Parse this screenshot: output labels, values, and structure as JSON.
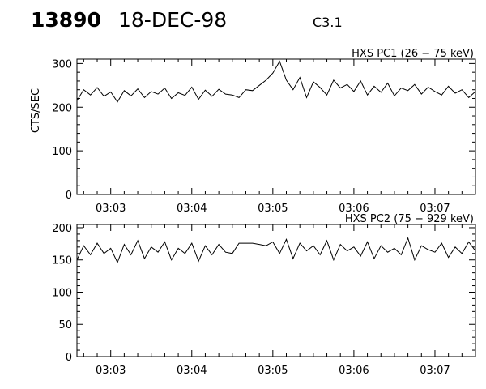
{
  "header": {
    "flare_number": "13890",
    "date": "18-DEC-98",
    "goes_class": "C3.1"
  },
  "chart_data": [
    {
      "type": "line",
      "title": "HXS PC1 (26 − 75 keV)",
      "ylabel": "CTS/SEC",
      "xlabel": "",
      "xlim": [
        "03:02:35",
        "03:07:30"
      ],
      "ylim": [
        0,
        310
      ],
      "yticks": [
        0,
        100,
        200,
        300
      ],
      "xticks": [
        "03:03",
        "03:04",
        "03:05",
        "03:06",
        "03:07"
      ],
      "grid": false,
      "series": [
        {
          "x": [
            "03:02:35",
            "03:02:40",
            "03:02:45",
            "03:02:50",
            "03:02:55",
            "03:03:00",
            "03:03:05",
            "03:03:10",
            "03:03:15",
            "03:03:20",
            "03:03:25",
            "03:03:30",
            "03:03:35",
            "03:03:40",
            "03:03:45",
            "03:03:50",
            "03:03:55",
            "03:04:00",
            "03:04:05",
            "03:04:10",
            "03:04:15",
            "03:04:20",
            "03:04:25",
            "03:04:30",
            "03:04:35",
            "03:04:40",
            "03:04:45",
            "03:04:50",
            "03:04:55",
            "03:05:00",
            "03:05:05",
            "03:05:10",
            "03:05:15",
            "03:05:20",
            "03:05:25",
            "03:05:30",
            "03:05:35",
            "03:05:40",
            "03:05:45",
            "03:05:50",
            "03:05:55",
            "03:06:00",
            "03:06:05",
            "03:06:10",
            "03:06:15",
            "03:06:20",
            "03:06:25",
            "03:06:30",
            "03:06:35",
            "03:06:40",
            "03:06:45",
            "03:06:50",
            "03:06:55",
            "03:07:00",
            "03:07:05",
            "03:07:10",
            "03:07:15",
            "03:07:20",
            "03:07:25",
            "03:07:30"
          ],
          "values": [
            215,
            240,
            228,
            245,
            225,
            235,
            212,
            238,
            226,
            242,
            222,
            236,
            230,
            244,
            220,
            233,
            227,
            246,
            218,
            239,
            225,
            241,
            230,
            228,
            222,
            240,
            238,
            250,
            262,
            278,
            305,
            262,
            240,
            268,
            222,
            258,
            245,
            228,
            262,
            244,
            252,
            236,
            260,
            228,
            248,
            234,
            255,
            226,
            244,
            238,
            252,
            230,
            246,
            236,
            228,
            248,
            232,
            240,
            222,
            236
          ]
        }
      ]
    },
    {
      "type": "line",
      "title": "HXS PC2 (75 − 929 keV)",
      "ylabel": "",
      "xlabel": "",
      "xlim": [
        "03:02:35",
        "03:07:30"
      ],
      "ylim": [
        0,
        205
      ],
      "yticks": [
        0,
        50,
        100,
        150,
        200
      ],
      "xticks": [
        "03:03",
        "03:04",
        "03:05",
        "03:06",
        "03:07"
      ],
      "grid": false,
      "series": [
        {
          "x": [
            "03:02:35",
            "03:02:40",
            "03:02:45",
            "03:02:50",
            "03:02:55",
            "03:03:00",
            "03:03:05",
            "03:03:10",
            "03:03:15",
            "03:03:20",
            "03:03:25",
            "03:03:30",
            "03:03:35",
            "03:03:40",
            "03:03:45",
            "03:03:50",
            "03:03:55",
            "03:04:00",
            "03:04:05",
            "03:04:10",
            "03:04:15",
            "03:04:20",
            "03:04:25",
            "03:04:30",
            "03:04:35",
            "03:04:40",
            "03:04:45",
            "03:04:50",
            "03:04:55",
            "03:05:00",
            "03:05:05",
            "03:05:10",
            "03:05:15",
            "03:05:20",
            "03:05:25",
            "03:05:30",
            "03:05:35",
            "03:05:40",
            "03:05:45",
            "03:05:50",
            "03:05:55",
            "03:06:00",
            "03:06:05",
            "03:06:10",
            "03:06:15",
            "03:06:20",
            "03:06:25",
            "03:06:30",
            "03:06:35",
            "03:06:40",
            "03:06:45",
            "03:06:50",
            "03:06:55",
            "03:07:00",
            "03:07:05",
            "03:07:10",
            "03:07:15",
            "03:07:20",
            "03:07:25",
            "03:07:30"
          ],
          "values": [
            150,
            172,
            158,
            176,
            160,
            168,
            146,
            174,
            158,
            180,
            152,
            170,
            162,
            178,
            150,
            168,
            160,
            176,
            148,
            172,
            158,
            174,
            162,
            160,
            176,
            176,
            176,
            174,
            172,
            178,
            160,
            182,
            152,
            176,
            164,
            172,
            158,
            180,
            150,
            174,
            164,
            170,
            156,
            178,
            152,
            172,
            162,
            168,
            158,
            184,
            150,
            172,
            166,
            162,
            176,
            154,
            170,
            160,
            178,
            164
          ]
        }
      ]
    }
  ]
}
